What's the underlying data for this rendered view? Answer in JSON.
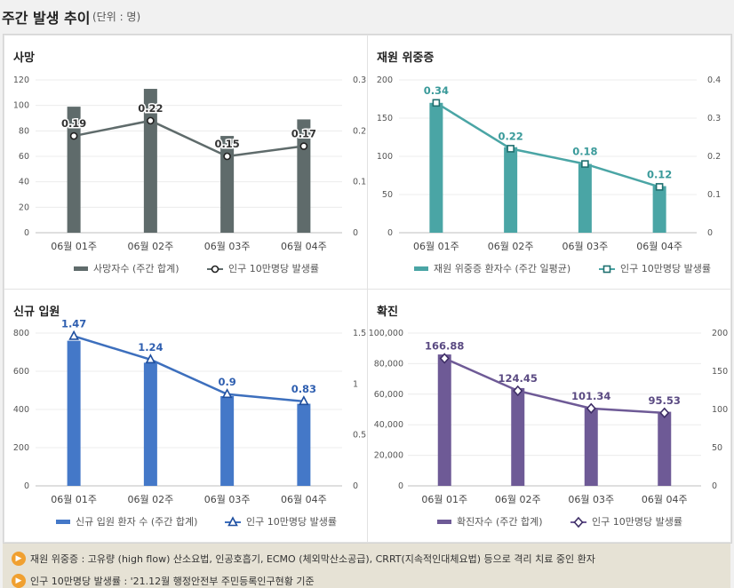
{
  "header": {
    "title": "주간 발생 추이",
    "unit": "(단위 : 명)"
  },
  "footer": {
    "notes": [
      "재원 위중증 : 고유량 (high flow) 산소요법, 인공호흡기, ECMO (체외막산소공급), CRRT(지속적인대체요법) 등으로 격리 치료 중인 환자",
      "인구 10만명당 발생률 : '21.12월 행정안전부 주민등록인구현황 기준"
    ],
    "icon": "speaker-icon"
  },
  "chart_data": [
    {
      "type": "bar",
      "title": "사망",
      "categories": [
        "06월 01주",
        "06월 02주",
        "06월 03주",
        "06월 04주"
      ],
      "series": [
        {
          "name": "사망자수 (주간 합계)",
          "type": "bar",
          "axis": "left",
          "values": [
            99,
            113,
            76,
            89
          ]
        },
        {
          "name": "인구 10만명당 발생률",
          "type": "line",
          "axis": "right",
          "values": [
            0.19,
            0.22,
            0.15,
            0.17
          ]
        }
      ],
      "ylim_left": [
        0,
        120
      ],
      "yticks_left": [
        "0",
        "20",
        "40",
        "60",
        "80",
        "100",
        "120"
      ],
      "ylim_right": [
        0,
        0.3
      ],
      "yticks_right": [
        "0",
        "0.1",
        "0.2",
        "0.3"
      ],
      "colors": {
        "bar": "#5f6b6b",
        "line": "#5f6b6b",
        "label": "#333333"
      },
      "marker": "circle",
      "legend": "bottom"
    },
    {
      "type": "bar",
      "title": "재원 위중증",
      "categories": [
        "06월 01주",
        "06월 02주",
        "06월 03주",
        "06월 04주"
      ],
      "series": [
        {
          "name": "재원 위중증 환자수 (주간 일평균)",
          "type": "bar",
          "axis": "left",
          "values": [
            170,
            112,
            90,
            61
          ]
        },
        {
          "name": "인구 10만명당 발생률",
          "type": "line",
          "axis": "right",
          "values": [
            0.34,
            0.22,
            0.18,
            0.12
          ]
        }
      ],
      "ylim_left": [
        0,
        200
      ],
      "yticks_left": [
        "0",
        "50",
        "100",
        "150",
        "200"
      ],
      "ylim_right": [
        0,
        0.4
      ],
      "yticks_right": [
        "0",
        "0.1",
        "0.2",
        "0.3",
        "0.4"
      ],
      "colors": {
        "bar": "#4aa5a5",
        "line": "#4aa5a5",
        "label": "#3a9a9a"
      },
      "marker": "square",
      "legend": "bottom"
    },
    {
      "type": "bar",
      "title": "신규 입원",
      "categories": [
        "06월 01주",
        "06월 02주",
        "06월 03주",
        "06월 04주"
      ],
      "series": [
        {
          "name": "신규 입원 환자 수 (주간 합계)",
          "type": "bar",
          "axis": "left",
          "values": [
            760,
            645,
            470,
            430
          ]
        },
        {
          "name": "인구 10만명당 발생률",
          "type": "line",
          "axis": "right",
          "values": [
            1.47,
            1.24,
            0.9,
            0.83
          ]
        }
      ],
      "ylim_left": [
        0,
        800
      ],
      "yticks_left": [
        "0",
        "200",
        "400",
        "600",
        "800"
      ],
      "ylim_right": [
        0,
        1.5
      ],
      "yticks_right": [
        "0",
        "0.5",
        "1",
        "1.5"
      ],
      "colors": {
        "bar": "#4478c8",
        "line": "#3d6fbd",
        "label": "#2f5fb0"
      },
      "marker": "triangle",
      "legend": "bottom"
    },
    {
      "type": "bar",
      "title": "확진",
      "categories": [
        "06월 01주",
        "06월 02주",
        "06월 03주",
        "06월 04주"
      ],
      "series": [
        {
          "name": "확진자수 (주간 합계)",
          "type": "bar",
          "axis": "left",
          "values": [
            86000,
            64000,
            51000,
            48500
          ]
        },
        {
          "name": "인구 10만명당 발생률",
          "type": "line",
          "axis": "right",
          "values": [
            166.88,
            124.45,
            101.34,
            95.53
          ]
        }
      ],
      "ylim_left": [
        0,
        100000
      ],
      "yticks_left": [
        "0",
        "20,000",
        "40,000",
        "60,000",
        "80,000",
        "100,000"
      ],
      "ylim_right": [
        0,
        200
      ],
      "yticks_right": [
        "0",
        "50",
        "100",
        "150",
        "200"
      ],
      "colors": {
        "bar": "#6e5a96",
        "line": "#6e5a96",
        "label": "#5a4a82"
      },
      "marker": "diamond",
      "legend": "bottom"
    }
  ]
}
